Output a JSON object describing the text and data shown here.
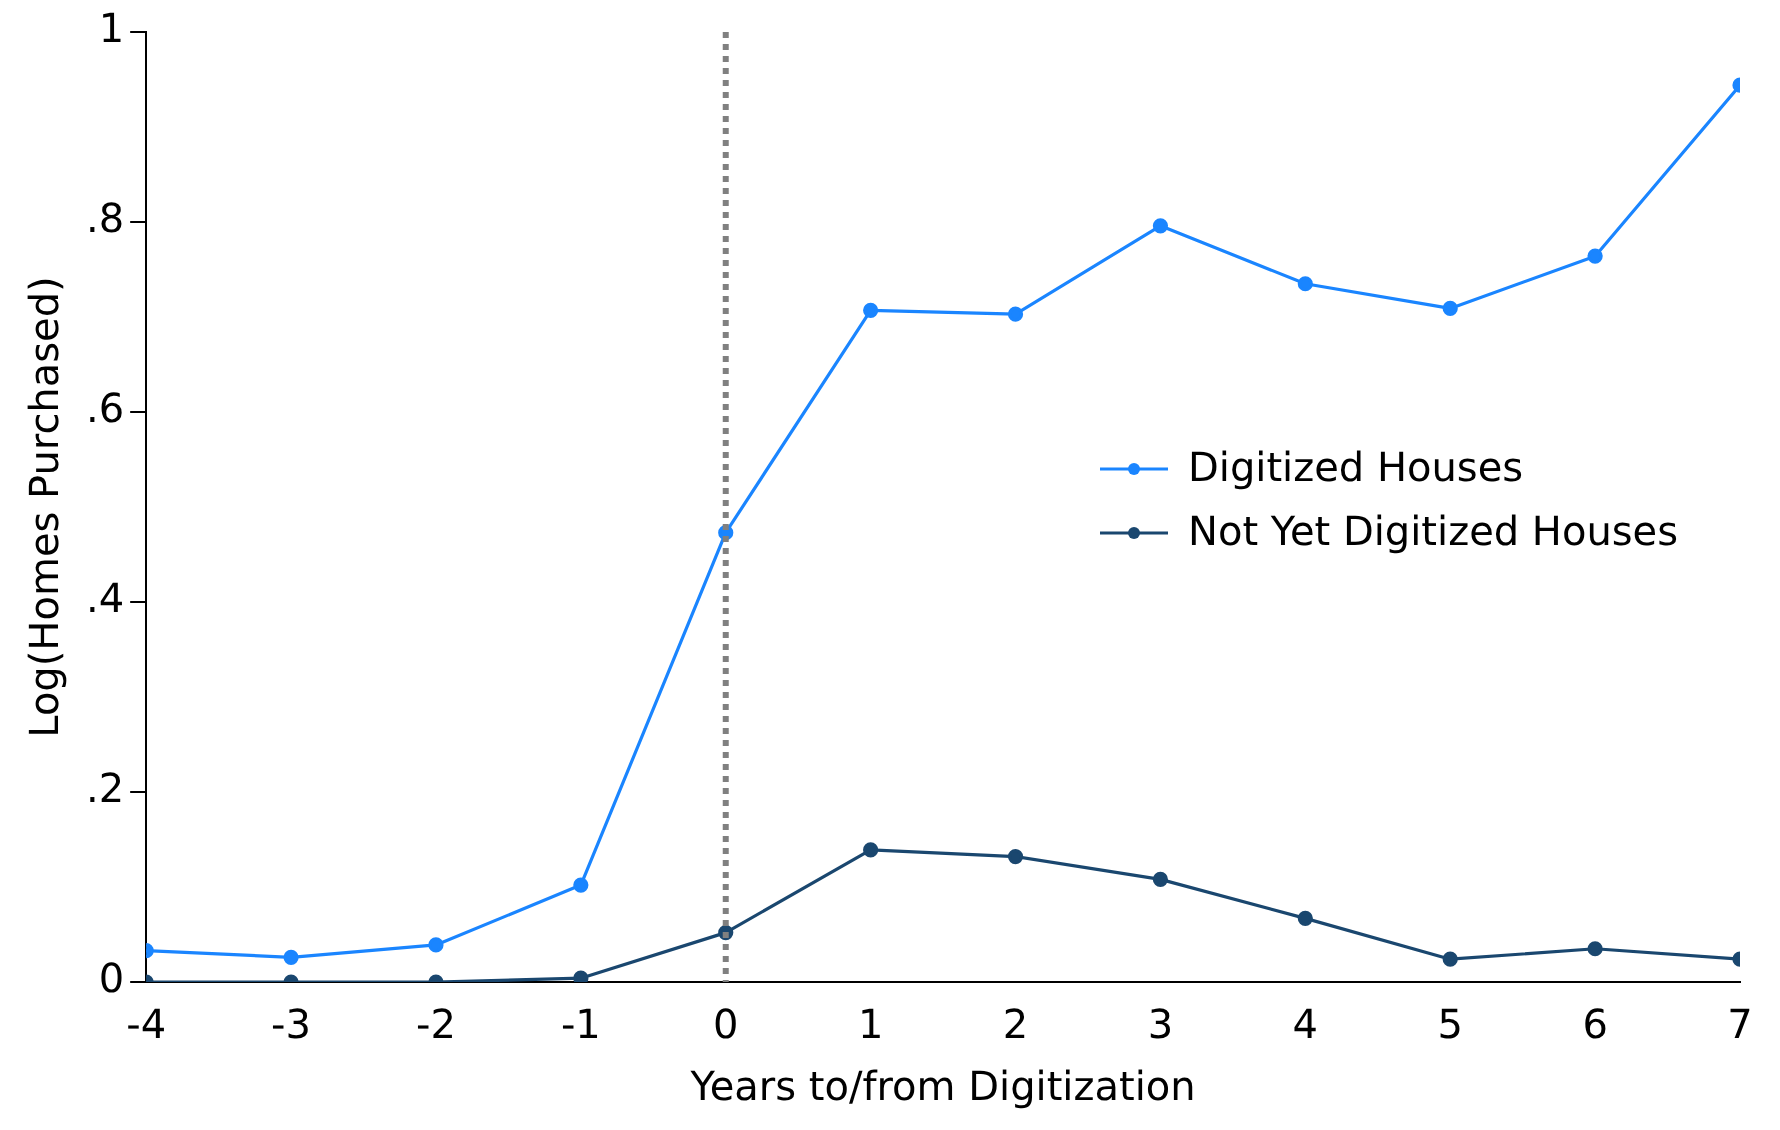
{
  "chart_data": {
    "type": "line",
    "xlabel": "Years to/from Digitization",
    "ylabel": "Log(Homes Purchased)",
    "x": [
      -4,
      -3,
      -2,
      -1,
      0,
      1,
      2,
      3,
      4,
      5,
      6,
      7
    ],
    "series": [
      {
        "name": "Digitized Houses",
        "color": "#1a85ff",
        "values": [
          0.033,
          0.026,
          0.039,
          0.102,
          0.473,
          0.707,
          0.703,
          0.796,
          0.735,
          0.709,
          0.764,
          0.944
        ]
      },
      {
        "name": "Not Yet Digitized Houses",
        "color": "#1a476f",
        "values": [
          0,
          0,
          0,
          0.004,
          0.052,
          0.139,
          0.132,
          0.108,
          0.067,
          0.024,
          0.035,
          0.024
        ]
      }
    ],
    "xlim": [
      -4,
      7
    ],
    "xticks": [
      -4,
      -3,
      -2,
      -1,
      0,
      1,
      2,
      3,
      4,
      5,
      6,
      7
    ],
    "ylim": [
      0,
      1
    ],
    "yticks": [
      0,
      {
        "value": 0.2,
        "label": ".2"
      },
      {
        "value": 0.4,
        "label": ".4"
      },
      {
        "value": 0.6,
        "label": ".6"
      },
      {
        "value": 0.8,
        "label": ".8"
      },
      1
    ],
    "ref_lines": [
      {
        "axis": "x",
        "value": 0,
        "color": "#808080",
        "line_style": "dotted"
      }
    ],
    "grid": false,
    "legend": "right",
    "marker": "circle",
    "line_style": "solid"
  }
}
